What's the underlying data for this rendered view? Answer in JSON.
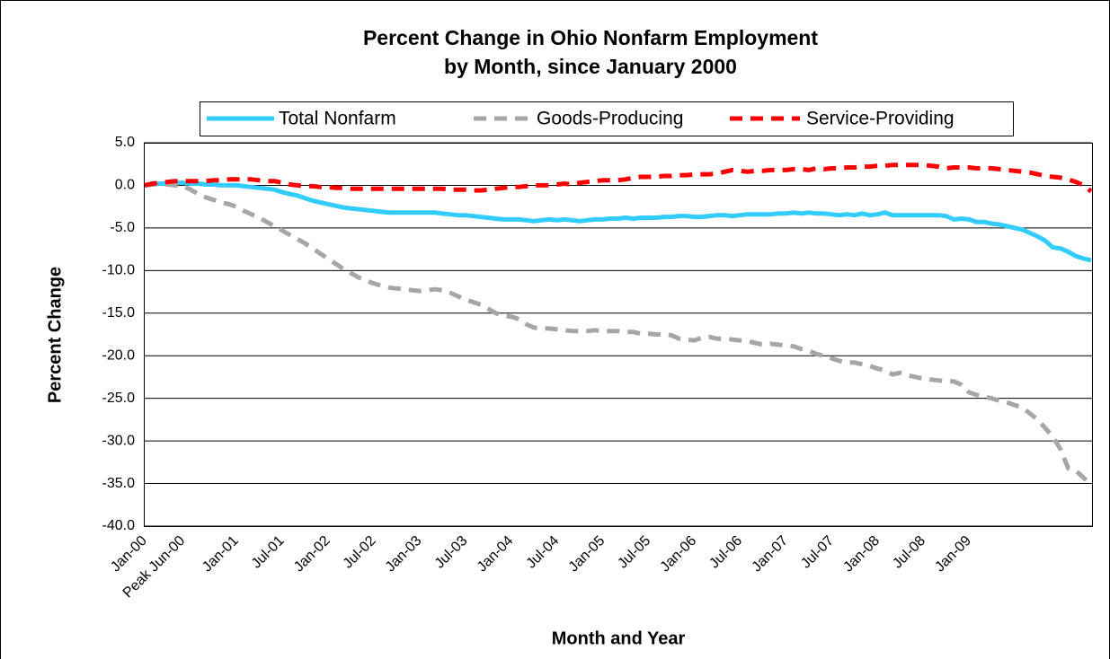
{
  "chart_data": {
    "type": "line",
    "title": [
      "Percent Change in Ohio Nonfarm Employment",
      "by Month, since January 2000"
    ],
    "x_label": "Month and Year",
    "y_label": "Percent Change",
    "categories": [
      "Jan-00",
      null,
      null,
      null,
      null,
      "Peak Jun-00",
      null,
      null,
      null,
      null,
      null,
      null,
      "Jan-01",
      null,
      null,
      null,
      null,
      null,
      "Jul-01",
      null,
      null,
      null,
      null,
      null,
      "Jan-02",
      null,
      null,
      null,
      null,
      null,
      "Jul-02",
      null,
      null,
      null,
      null,
      null,
      "Jan-03",
      null,
      null,
      null,
      null,
      null,
      "Jul-03",
      null,
      null,
      null,
      null,
      null,
      "Jan-04",
      null,
      null,
      null,
      null,
      null,
      "Jul-04",
      null,
      null,
      null,
      null,
      null,
      "Jan-05",
      null,
      null,
      null,
      null,
      null,
      "Jul-05",
      null,
      null,
      null,
      null,
      null,
      "Jan-06",
      null,
      null,
      null,
      null,
      null,
      "Jul-06",
      null,
      null,
      null,
      null,
      null,
      "Jan-07",
      null,
      null,
      null,
      null,
      null,
      "Jul-07",
      null,
      null,
      null,
      null,
      null,
      "Jan-08",
      null,
      null,
      null,
      null,
      null,
      "Jul-08",
      null,
      null,
      null,
      null,
      null,
      "Jan-09",
      null,
      null,
      null,
      null,
      null,
      null,
      null,
      null,
      null,
      null,
      null,
      null,
      null,
      null,
      null,
      null
    ],
    "series": [
      {
        "name": "Total Nonfarm",
        "color": "#33ccff",
        "style": "solid",
        "values": [
          0,
          0.1,
          0.2,
          0.2,
          0.3,
          0.3,
          0.2,
          0.2,
          0.1,
          0.1,
          0,
          0,
          0,
          -0.1,
          -0.2,
          -0.3,
          -0.4,
          -0.5,
          -0.8,
          -1.0,
          -1.2,
          -1.5,
          -1.8,
          -2.0,
          -2.2,
          -2.4,
          -2.6,
          -2.7,
          -2.8,
          -2.9,
          -3.0,
          -3.1,
          -3.2,
          -3.2,
          -3.2,
          -3.2,
          -3.2,
          -3.2,
          -3.2,
          -3.3,
          -3.4,
          -3.5,
          -3.5,
          -3.6,
          -3.7,
          -3.8,
          -3.9,
          -4.0,
          -4.0,
          -4.0,
          -4.1,
          -4.2,
          -4.1,
          -4.0,
          -4.1,
          -4.0,
          -4.1,
          -4.2,
          -4.1,
          -4.0,
          -4.0,
          -3.9,
          -3.9,
          -3.8,
          -3.9,
          -3.8,
          -3.8,
          -3.8,
          -3.7,
          -3.7,
          -3.6,
          -3.6,
          -3.7,
          -3.7,
          -3.6,
          -3.5,
          -3.5,
          -3.6,
          -3.5,
          -3.4,
          -3.4,
          -3.4,
          -3.4,
          -3.3,
          -3.3,
          -3.2,
          -3.3,
          -3.2,
          -3.3,
          -3.3,
          -3.4,
          -3.5,
          -3.4,
          -3.5,
          -3.3,
          -3.5,
          -3.4,
          -3.2,
          -3.5,
          -3.5,
          -3.5,
          -3.5,
          -3.5,
          -3.5,
          -3.5,
          -3.6,
          -4.0,
          -3.9,
          -4.0,
          -4.3,
          -4.3,
          -4.5,
          -4.6,
          -4.8,
          -5.0,
          -5.2,
          -5.6,
          -6.0,
          -6.5,
          -7.3,
          -7.4,
          -7.8,
          -8.3,
          -8.6,
          -8.8
        ]
      },
      {
        "name": "Goods-Producing",
        "color": "#a6a6a6",
        "style": "dashed",
        "values": [
          0,
          0.1,
          0.2,
          0.1,
          0,
          -0.1,
          -0.5,
          -1.0,
          -1.4,
          -1.7,
          -2.0,
          -2.2,
          -2.5,
          -3.0,
          -3.4,
          -3.8,
          -4.3,
          -4.8,
          -5.3,
          -5.8,
          -6.3,
          -6.8,
          -7.4,
          -8.0,
          -8.6,
          -9.2,
          -9.8,
          -10.3,
          -10.8,
          -11.2,
          -11.5,
          -11.8,
          -12.0,
          -12.1,
          -12.2,
          -12.3,
          -12.4,
          -12.3,
          -12.2,
          -12.3,
          -12.6,
          -13.0,
          -13.4,
          -13.7,
          -14.0,
          -14.5,
          -15.0,
          -15.3,
          -15.4,
          -15.7,
          -16.3,
          -16.7,
          -16.8,
          -16.8,
          -16.9,
          -17.0,
          -17.1,
          -17.1,
          -17.1,
          -17.0,
          -17.1,
          -17.1,
          -17.1,
          -17.2,
          -17.2,
          -17.4,
          -17.4,
          -17.5,
          -17.5,
          -17.6,
          -18.0,
          -18.1,
          -18.2,
          -17.9,
          -17.8,
          -18.0,
          -18.0,
          -18.1,
          -18.2,
          -18.3,
          -18.5,
          -18.7,
          -18.6,
          -18.7,
          -18.8,
          -18.9,
          -19.2,
          -19.4,
          -19.8,
          -20.0,
          -20.3,
          -20.6,
          -20.8,
          -20.8,
          -21.0,
          -21.2,
          -21.5,
          -21.7,
          -22.2,
          -22.0,
          -22.3,
          -22.5,
          -22.7,
          -22.8,
          -22.9,
          -23.0,
          -23.0,
          -23.4,
          -24.3,
          -24.6,
          -24.8,
          -25.0,
          -25.3,
          -25.5,
          -25.8,
          -26.1,
          -26.8,
          -27.5,
          -28.5,
          -29.5,
          -31.0,
          -33.2,
          -33.5,
          -34.3,
          -35.2
        ]
      },
      {
        "name": "Service-Providing",
        "color": "#ff0000",
        "style": "dashed",
        "values": [
          0,
          0.2,
          0.3,
          0.4,
          0.5,
          0.5,
          0.5,
          0.5,
          0.5,
          0.6,
          0.6,
          0.7,
          0.7,
          0.7,
          0.7,
          0.6,
          0.5,
          0.5,
          0.3,
          0.1,
          0,
          -0.1,
          -0.1,
          -0.2,
          -0.2,
          -0.3,
          -0.3,
          -0.4,
          -0.4,
          -0.4,
          -0.4,
          -0.4,
          -0.4,
          -0.4,
          -0.4,
          -0.4,
          -0.4,
          -0.4,
          -0.4,
          -0.4,
          -0.5,
          -0.5,
          -0.5,
          -0.6,
          -0.6,
          -0.5,
          -0.4,
          -0.3,
          -0.2,
          -0.2,
          -0.1,
          0,
          0,
          0,
          0.1,
          0.2,
          0.1,
          0.3,
          0.4,
          0.5,
          0.6,
          0.6,
          0.6,
          0.7,
          0.9,
          1.0,
          1.0,
          1.0,
          1.1,
          1.1,
          1.2,
          1.2,
          1.3,
          1.3,
          1.3,
          1.4,
          1.6,
          1.8,
          1.7,
          1.6,
          1.7,
          1.7,
          1.8,
          1.8,
          1.8,
          1.9,
          1.9,
          1.8,
          2.0,
          1.9,
          2.0,
          2.0,
          2.1,
          2.1,
          2.2,
          2.2,
          2.3,
          2.3,
          2.4,
          2.4,
          2.4,
          2.4,
          2.4,
          2.3,
          2.2,
          2.0,
          2.1,
          2.1,
          2.1,
          2.0,
          2.0,
          2.0,
          1.9,
          1.8,
          1.7,
          1.6,
          1.5,
          1.3,
          1.1,
          1.0,
          0.9,
          0.7,
          0.4,
          0.0,
          -0.7
        ]
      }
    ],
    "ylim": [
      -40,
      5
    ],
    "yticks": [
      {
        "value": 5,
        "label": "5.0"
      },
      {
        "value": 0,
        "label": "0.0"
      },
      {
        "value": -5,
        "label": "-5.0"
      },
      {
        "value": -10,
        "label": "-10.0"
      },
      {
        "value": -15,
        "label": "-15.0"
      },
      {
        "value": -20,
        "label": "-20.0"
      },
      {
        "value": -25,
        "label": "-25.0"
      },
      {
        "value": -30,
        "label": "-30.0"
      },
      {
        "value": -35,
        "label": "-35.0"
      },
      {
        "value": -40,
        "label": "-40.0"
      }
    ],
    "grid": true,
    "legend": "top"
  }
}
